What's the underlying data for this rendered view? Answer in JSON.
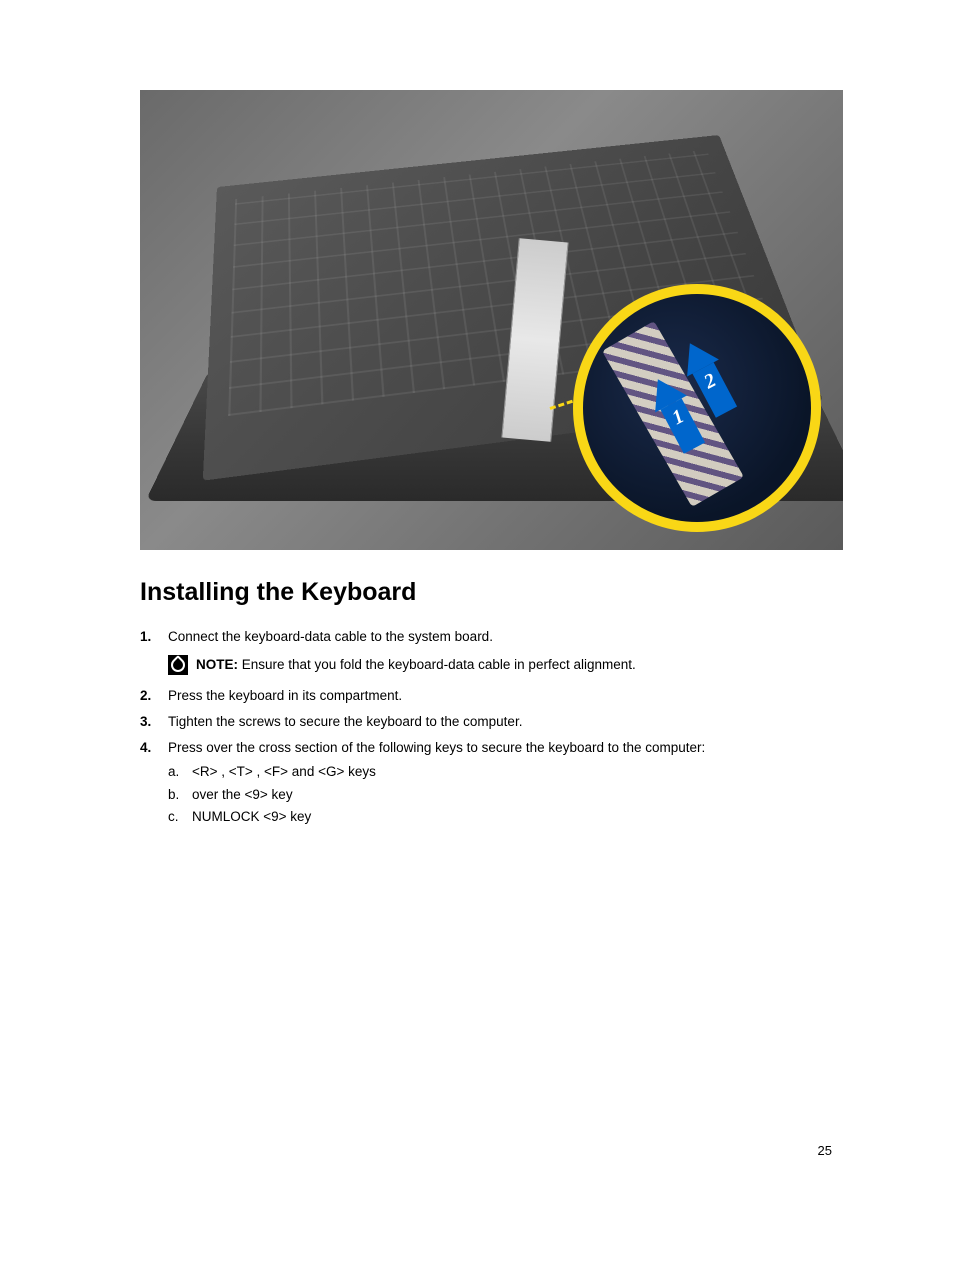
{
  "hero": {
    "callout": {
      "border_color": "#f9d716",
      "arrow_color": "#0066cc",
      "arrow1_label": "1",
      "arrow2_label": "2"
    }
  },
  "heading": "Installing the Keyboard",
  "steps": {
    "s1": {
      "text": "Connect the keyboard-data cable to the system board.",
      "note_label": "NOTE:",
      "note_text": " Ensure that you fold the keyboard-data cable in perfect alignment."
    },
    "s2": {
      "text": "Press the keyboard in its compartment."
    },
    "s3": {
      "text": "Tighten the screws to secure the keyboard to the computer."
    },
    "s4": {
      "text": "Press over the cross section of the following keys to secure the keyboard to the computer:",
      "sub": {
        "a": "<R> , <T> , <F> and <G> keys",
        "b": "over the <9> key",
        "c": "NUMLOCK <9> key"
      }
    }
  },
  "page_number": "25",
  "colors": {
    "text": "#000000",
    "background": "#ffffff",
    "accent_yellow": "#f9d716",
    "accent_blue": "#0066cc"
  },
  "typography": {
    "heading_fontsize": 25,
    "body_fontsize": 13.5,
    "font_family": "Arial, Helvetica, sans-serif"
  }
}
